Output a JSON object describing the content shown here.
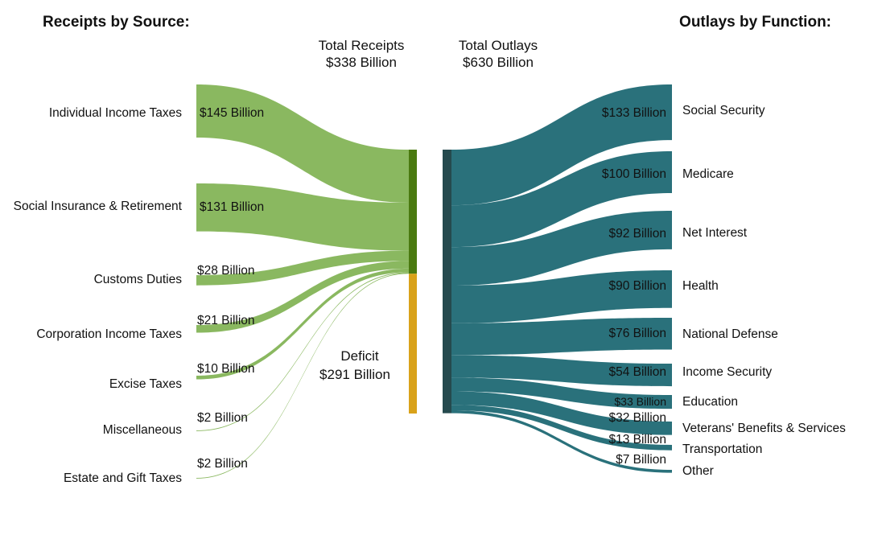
{
  "colors": {
    "receipt_flow": "#8ab860",
    "receipt_bar": "#4a7a10",
    "deficit": "#d9a21a",
    "outlay_flow": "#2a717b",
    "outlay_bar": "#254a4e"
  },
  "chart_data": {
    "type": "sankey",
    "title_left": "Receipts by Source:",
    "title_right": "Outlays by Function:",
    "total_receipts_label": "Total Receipts",
    "total_receipts_value": "$338 Billion",
    "total_outlays_label": "Total Outlays",
    "total_outlays_value": "$630 Billion",
    "deficit_label": "Deficit",
    "deficit_value_label": "$291 Billion",
    "deficit_value": 291,
    "unit": "Billion USD",
    "receipts": [
      {
        "name": "Individual Income Taxes",
        "value": 145,
        "label": "$145 Billion"
      },
      {
        "name": "Social Insurance & Retirement",
        "value": 131,
        "label": "$131 Billion"
      },
      {
        "name": "Customs Duties",
        "value": 28,
        "label": "$28 Billion"
      },
      {
        "name": "Corporation Income Taxes",
        "value": 21,
        "label": "$21 Billion"
      },
      {
        "name": "Excise Taxes",
        "value": 10,
        "label": "$10 Billion"
      },
      {
        "name": "Miscellaneous",
        "value": 2,
        "label": "$2 Billion"
      },
      {
        "name": "Estate and Gift Taxes",
        "value": 2,
        "label": "$2 Billion"
      }
    ],
    "outlays": [
      {
        "name": "Social Security",
        "value": 133,
        "label": "$133 Billion"
      },
      {
        "name": "Medicare",
        "value": 100,
        "label": "$100 Billion"
      },
      {
        "name": "Net Interest",
        "value": 92,
        "label": "$92 Billion"
      },
      {
        "name": "Health",
        "value": 90,
        "label": "$90 Billion"
      },
      {
        "name": "National Defense",
        "value": 76,
        "label": "$76 Billion"
      },
      {
        "name": "Income Security",
        "value": 54,
        "label": "$54 Billion"
      },
      {
        "name": "Education",
        "value": 33,
        "label": "$33 Billion"
      },
      {
        "name": "Veterans' Benefits & Services",
        "value": 32,
        "label": "$32 Billion"
      },
      {
        "name": "Transportation",
        "value": 13,
        "label": "$13 Billion"
      },
      {
        "name": "Other",
        "value": 7,
        "label": "$7 Billion"
      }
    ]
  }
}
